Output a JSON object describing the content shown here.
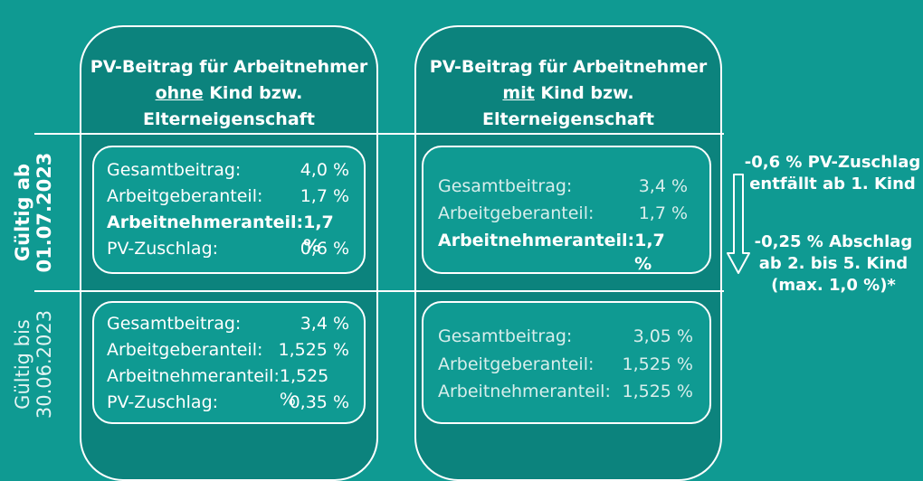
{
  "columns": [
    {
      "title_line1": "PV-Beitrag für Arbeitnehmer",
      "title_emph": "ohne",
      "title_rest": " Kind bzw.",
      "title_line3": "Elterneigenschaft"
    },
    {
      "title_line1": "PV-Beitrag für Arbeitnehmer",
      "title_emph": "mit",
      "title_rest": " Kind bzw.",
      "title_line3": "Elterneigenschaft"
    }
  ],
  "row_labels": [
    {
      "line1": "Gültig ab",
      "line2": "01.07.2023"
    },
    {
      "line1": "Gültig bis",
      "line2": "30.06.2023"
    }
  ],
  "boxes": {
    "new_without": [
      {
        "label": "Gesamtbeitrag:",
        "value": "4,0 %"
      },
      {
        "label": "Arbeitgeberanteil:",
        "value": "1,7 %"
      },
      {
        "label": "Arbeitnehmeranteil:",
        "value": "1,7 %"
      },
      {
        "label": "PV-Zuschlag:",
        "value": "0,6 %"
      }
    ],
    "new_with": [
      {
        "label": "Gesamtbeitrag:",
        "value": "3,4 %"
      },
      {
        "label": "Arbeitgeberanteil:",
        "value": "1,7 %"
      },
      {
        "label": "Arbeitnehmeranteil:",
        "value": "1,7 %"
      }
    ],
    "old_without": [
      {
        "label": "Gesamtbeitrag:",
        "value": "3,4 %"
      },
      {
        "label": "Arbeitgeberanteil:",
        "value": "1,525 %"
      },
      {
        "label": "Arbeitnehmeranteil:",
        "value": "1,525 %"
      },
      {
        "label": "PV-Zuschlag:",
        "value": "0,35 %"
      }
    ],
    "old_with": [
      {
        "label": "Gesamtbeitrag:",
        "value": "3,05 %"
      },
      {
        "label": "Arbeitgeberanteil:",
        "value": "1,525 %"
      },
      {
        "label": "Arbeitnehmeranteil:",
        "value": "1,525 %"
      }
    ]
  },
  "notes": {
    "note1_line1": "-0,6 % PV-Zuschlag",
    "note1_line2": "entfällt ab 1. Kind",
    "note2_line1": "-0,25 % Abschlag",
    "note2_line2": "ab 2. bis 5. Kind",
    "note2_line3": "(max. 1,0 %)*"
  },
  "colors": {
    "background": "#0f9a92",
    "column": "#0c837d",
    "line": "#ffffff"
  }
}
